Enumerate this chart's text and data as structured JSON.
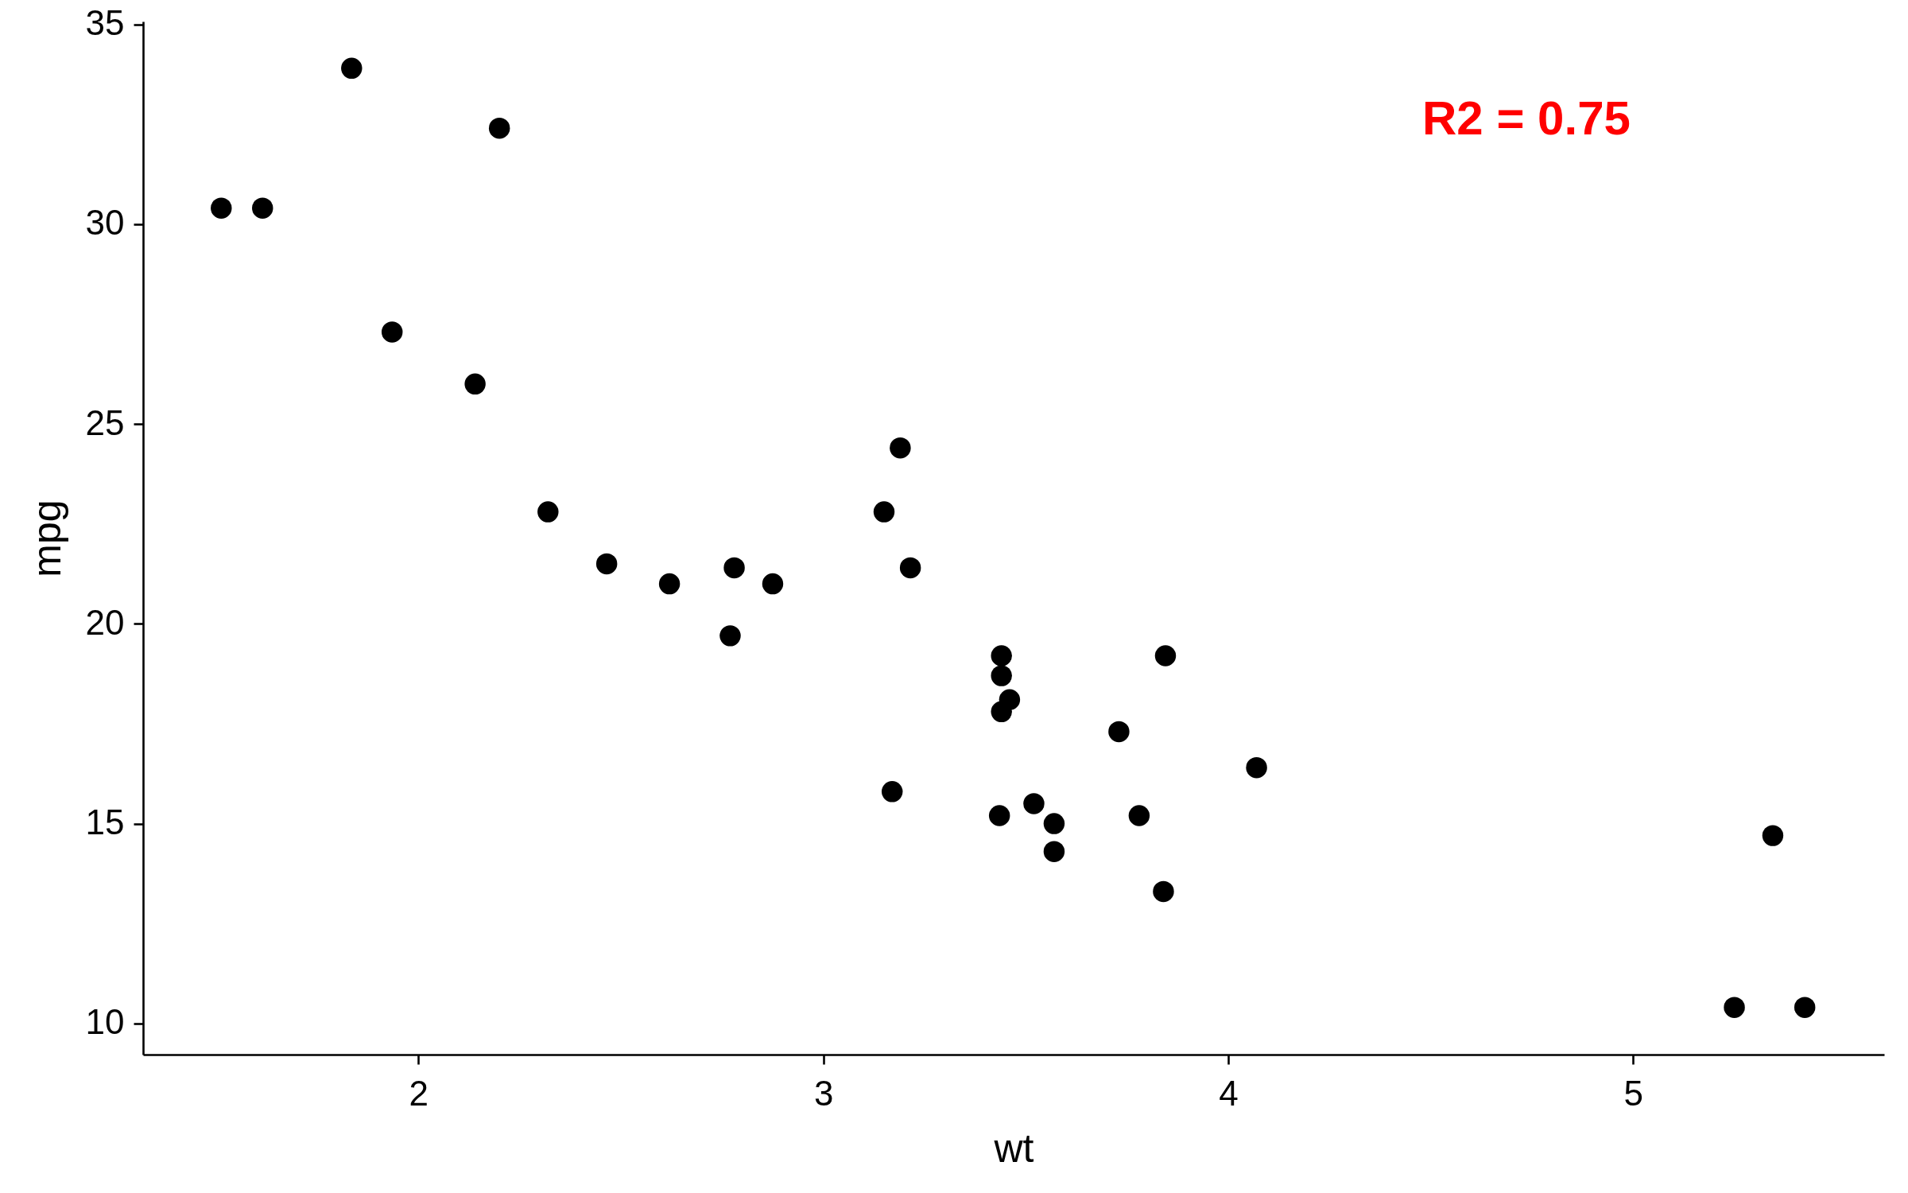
{
  "chart_data": {
    "type": "scatter",
    "xlabel": "wt",
    "ylabel": "mpg",
    "x": [
      2.62,
      2.875,
      2.32,
      3.215,
      3.44,
      3.46,
      3.57,
      3.19,
      3.15,
      3.44,
      3.44,
      4.07,
      3.73,
      3.78,
      5.25,
      5.424,
      5.345,
      2.2,
      1.615,
      1.835,
      2.465,
      3.52,
      3.435,
      3.84,
      3.845,
      1.935,
      2.14,
      1.513,
      3.17,
      2.77,
      3.57,
      2.78
    ],
    "values": [
      21.0,
      21.0,
      22.8,
      21.4,
      18.7,
      18.1,
      14.3,
      24.4,
      22.8,
      19.2,
      17.8,
      16.4,
      17.3,
      15.2,
      10.4,
      10.4,
      14.7,
      32.4,
      30.4,
      33.9,
      21.5,
      15.5,
      15.2,
      13.3,
      19.2,
      27.3,
      26.0,
      30.4,
      15.8,
      19.7,
      15.0,
      21.4
    ],
    "color": "#000000",
    "marker": "circle",
    "xlim": [
      1.32,
      5.62
    ],
    "ylim": [
      9.22,
      35.07
    ],
    "xticks": [
      2,
      3,
      4,
      5
    ],
    "yticks": [
      10,
      15,
      20,
      25,
      30,
      35
    ],
    "annotations": [
      "R2 = 0.75"
    ]
  }
}
